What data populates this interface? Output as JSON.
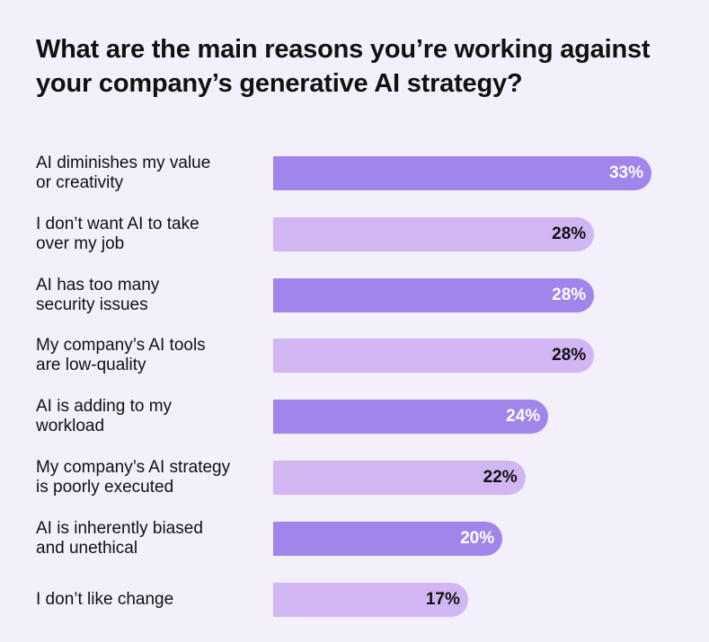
{
  "title": "What are the main reasons you’re working against your company’s generative AI strategy?",
  "colors": {
    "background": "#f3effb",
    "bar_dark": "#a185ea",
    "bar_light": "#d2b5f3",
    "text_on_dark": "#ffffff",
    "text_on_light": "#111111"
  },
  "chart_data": {
    "type": "bar",
    "orientation": "horizontal",
    "title": "What are the main reasons you’re working against your company’s generative AI strategy?",
    "unit": "%",
    "xlim": [
      0,
      33
    ],
    "categories": [
      "AI diminishes my value or creativity",
      "I don’t want AI to take over my job",
      "AI has too many security issues",
      "My company’s AI tools are low-quality",
      "AI is adding to my workload",
      "My company’s AI strategy is poorly executed",
      "AI is inherently biased and unethical",
      "I don’t like change"
    ],
    "label_lines": [
      [
        "AI diminishes my value",
        "or creativity"
      ],
      [
        "I don’t want AI to take",
        "over my job"
      ],
      [
        "AI has too many",
        "security issues"
      ],
      [
        "My company’s AI tools",
        "are low-quality"
      ],
      [
        "AI is adding to my",
        "workload"
      ],
      [
        "My company’s AI strategy",
        "is poorly executed"
      ],
      [
        "AI is inherently biased",
        "and unethical"
      ],
      [
        "I don’t like change"
      ]
    ],
    "values": [
      33,
      28,
      28,
      28,
      24,
      22,
      20,
      17
    ],
    "value_labels": [
      "33%",
      "28%",
      "28%",
      "28%",
      "24%",
      "22%",
      "20%",
      "17%"
    ],
    "bar_shades": [
      "dark",
      "light",
      "dark",
      "light",
      "dark",
      "light",
      "dark",
      "light"
    ]
  }
}
